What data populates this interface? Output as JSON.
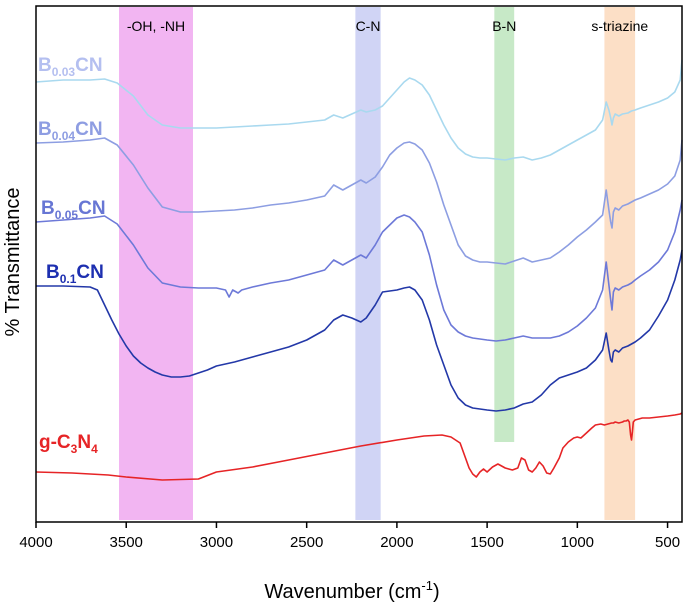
{
  "chart_data": {
    "type": "line",
    "title": "",
    "xlabel": "Wavenumber (cm",
    "xlabel_sup": "-1",
    "xlabel_tail": ")",
    "ylabel": "% Transmittance",
    "xlim": [
      4000,
      420
    ],
    "x_ticks": [
      4000,
      3500,
      3000,
      2500,
      2000,
      1500,
      1000,
      500
    ],
    "y_ticks": [],
    "grid": false,
    "bands": [
      {
        "label": "-OH, -NH",
        "from": 3540,
        "to": 3130,
        "color": "#f0a8f0"
      },
      {
        "label": "C-N",
        "from": 2230,
        "to": 2090,
        "color": "#c8cdf3"
      },
      {
        "label": "B-N",
        "from": 1460,
        "to": 1350,
        "color": "#bde5bd"
      },
      {
        "label": "s-triazine",
        "from": 850,
        "to": 680,
        "color": "#fbd9bc"
      }
    ],
    "series": [
      {
        "name": "B0.03CN",
        "label_main": "B",
        "label_sub": "0.03",
        "label_tail": "CN",
        "color": "#a9d9ef",
        "label_color": "#b4bff0",
        "x": [
          4000,
          3850,
          3700,
          3620,
          3550,
          3460,
          3380,
          3300,
          3200,
          3100,
          3000,
          2900,
          2800,
          2700,
          2600,
          2500,
          2400,
          2350,
          2300,
          2250,
          2200,
          2170,
          2120,
          2080,
          2040,
          2000,
          1960,
          1930,
          1900,
          1860,
          1820,
          1780,
          1740,
          1700,
          1660,
          1620,
          1580,
          1540,
          1500,
          1450,
          1400,
          1350,
          1300,
          1250,
          1200,
          1150,
          1100,
          1050,
          1000,
          950,
          900,
          860,
          840,
          825,
          815,
          808,
          800,
          790,
          770,
          750,
          720,
          700,
          680,
          650,
          600,
          550,
          500,
          460,
          430,
          420
        ],
        "y": [
          82,
          80,
          80,
          79,
          83,
          96,
          115,
          125,
          128,
          128,
          128,
          127,
          126,
          125,
          124,
          122,
          120,
          115,
          118,
          114,
          110,
          112,
          110,
          106,
          98,
          90,
          82,
          78,
          80,
          85,
          95,
          110,
          125,
          138,
          148,
          154,
          157,
          158,
          158,
          159,
          160,
          158,
          157,
          160,
          158,
          155,
          150,
          145,
          140,
          135,
          130,
          120,
          102,
          110,
          118,
          125,
          118,
          114,
          116,
          114,
          113,
          111,
          110,
          108,
          105,
          102,
          98,
          92,
          80,
          60
        ]
      },
      {
        "name": "B0.04CN",
        "label_main": "B",
        "label_sub": "0.04",
        "label_tail": "CN",
        "color": "#8d9ee2",
        "label_color": "#8e9de2",
        "x": [
          4000,
          3850,
          3700,
          3620,
          3550,
          3460,
          3380,
          3300,
          3200,
          3100,
          3000,
          2900,
          2800,
          2700,
          2600,
          2500,
          2400,
          2350,
          2300,
          2250,
          2200,
          2170,
          2120,
          2080,
          2040,
          2000,
          1960,
          1930,
          1900,
          1860,
          1820,
          1780,
          1740,
          1700,
          1660,
          1620,
          1580,
          1540,
          1500,
          1450,
          1400,
          1350,
          1300,
          1250,
          1200,
          1150,
          1100,
          1050,
          1000,
          950,
          900,
          860,
          840,
          825,
          815,
          808,
          800,
          790,
          770,
          750,
          720,
          700,
          680,
          650,
          600,
          550,
          500,
          460,
          430,
          420
        ],
        "y": [
          143,
          142,
          140,
          138,
          145,
          165,
          188,
          207,
          212,
          212,
          211,
          210,
          208,
          205,
          203,
          200,
          196,
          185,
          190,
          185,
          180,
          183,
          177,
          167,
          155,
          148,
          143,
          142,
          144,
          150,
          163,
          182,
          205,
          225,
          245,
          256,
          260,
          262,
          262,
          263,
          264,
          261,
          258,
          262,
          260,
          258,
          252,
          245,
          237,
          230,
          222,
          215,
          190,
          210,
          222,
          228,
          212,
          208,
          210,
          206,
          204,
          202,
          200,
          198,
          194,
          190,
          184,
          176,
          160,
          140
        ]
      },
      {
        "name": "B0.05CN",
        "label_main": "B",
        "label_sub": "0.05",
        "label_tail": "CN",
        "color": "#6d79d8",
        "label_color": "#6776d4",
        "x": [
          4000,
          3850,
          3700,
          3620,
          3550,
          3460,
          3380,
          3300,
          3200,
          3100,
          3000,
          2950,
          2930,
          2910,
          2880,
          2860,
          2800,
          2700,
          2600,
          2500,
          2400,
          2350,
          2300,
          2250,
          2200,
          2170,
          2120,
          2080,
          2040,
          2000,
          1960,
          1930,
          1900,
          1860,
          1820,
          1780,
          1740,
          1700,
          1660,
          1620,
          1580,
          1540,
          1500,
          1450,
          1400,
          1350,
          1300,
          1250,
          1200,
          1150,
          1100,
          1050,
          1000,
          950,
          900,
          860,
          840,
          825,
          815,
          808,
          800,
          790,
          770,
          750,
          720,
          700,
          680,
          650,
          600,
          550,
          500,
          460,
          430,
          420
        ],
        "y": [
          222,
          220,
          218,
          216,
          224,
          245,
          268,
          283,
          287,
          288,
          288,
          290,
          297,
          290,
          293,
          290,
          287,
          283,
          280,
          275,
          270,
          260,
          265,
          260,
          255,
          258,
          245,
          232,
          225,
          218,
          215,
          217,
          222,
          232,
          255,
          285,
          310,
          325,
          332,
          336,
          338,
          339,
          340,
          341,
          340,
          338,
          336,
          338,
          338,
          338,
          336,
          332,
          326,
          318,
          308,
          290,
          262,
          285,
          300,
          310,
          292,
          288,
          290,
          287,
          285,
          283,
          280,
          276,
          270,
          262,
          250,
          232,
          210,
          200
        ]
      },
      {
        "name": "B0.1CN",
        "label_main": "B",
        "label_sub": "0.1",
        "label_tail": "CN",
        "color": "#2338a8",
        "label_color": "#1d2fb0",
        "x": [
          4000,
          3850,
          3700,
          3660,
          3620,
          3580,
          3540,
          3500,
          3460,
          3420,
          3380,
          3340,
          3300,
          3250,
          3200,
          3150,
          3100,
          3050,
          3000,
          2900,
          2800,
          2700,
          2600,
          2500,
          2400,
          2350,
          2300,
          2250,
          2200,
          2170,
          2120,
          2080,
          2040,
          2000,
          1960,
          1930,
          1900,
          1860,
          1820,
          1780,
          1740,
          1700,
          1660,
          1620,
          1580,
          1540,
          1500,
          1450,
          1400,
          1350,
          1300,
          1250,
          1200,
          1150,
          1100,
          1050,
          1000,
          950,
          900,
          860,
          840,
          825,
          815,
          808,
          800,
          790,
          770,
          750,
          720,
          700,
          680,
          650,
          600,
          550,
          500,
          460,
          430,
          420
        ],
        "y": [
          286,
          286,
          287,
          290,
          305,
          320,
          334,
          346,
          356,
          363,
          368,
          372,
          375,
          377,
          377,
          376,
          373,
          370,
          366,
          362,
          357,
          352,
          347,
          340,
          330,
          320,
          315,
          318,
          322,
          318,
          305,
          292,
          291,
          290,
          288,
          287,
          290,
          300,
          320,
          345,
          365,
          385,
          398,
          405,
          408,
          409,
          410,
          411,
          410,
          408,
          404,
          402,
          395,
          385,
          378,
          375,
          372,
          368,
          360,
          350,
          333,
          350,
          360,
          362,
          352,
          350,
          352,
          348,
          346,
          344,
          342,
          338,
          330,
          316,
          300,
          280,
          260,
          250
        ]
      },
      {
        "name": "g-C3N4",
        "label_main": "g-C",
        "label_sub": "3",
        "label_mid": "N",
        "label_sub2": "4",
        "label_tail": "",
        "color": "#e62426",
        "label_color": "#e62426",
        "x": [
          4000,
          3800,
          3600,
          3500,
          3300,
          3100,
          3000,
          2800,
          2600,
          2400,
          2200,
          2000,
          1850,
          1750,
          1700,
          1650,
          1620,
          1600,
          1580,
          1560,
          1540,
          1520,
          1500,
          1470,
          1440,
          1420,
          1400,
          1360,
          1330,
          1310,
          1290,
          1270,
          1250,
          1230,
          1210,
          1190,
          1170,
          1150,
          1130,
          1100,
          1080,
          1050,
          1020,
          1000,
          980,
          950,
          920,
          900,
          870,
          850,
          830,
          810,
          800,
          790,
          770,
          750,
          740,
          730,
          720,
          712,
          705,
          700,
          695,
          690,
          680,
          660,
          640,
          600,
          550,
          500,
          460,
          430,
          420
        ],
        "y": [
          472,
          473,
          475,
          477,
          480,
          479,
          472,
          467,
          460,
          453,
          446,
          440,
          436,
          435,
          437,
          443,
          458,
          468,
          474,
          477,
          472,
          469,
          472,
          467,
          464,
          466,
          468,
          470,
          468,
          458,
          460,
          470,
          472,
          468,
          462,
          466,
          473,
          474,
          468,
          458,
          448,
          442,
          438,
          437,
          438,
          433,
          428,
          425,
          424,
          425,
          424,
          423,
          423,
          422,
          423,
          422,
          421,
          421,
          420,
          422,
          435,
          440,
          432,
          422,
          420,
          419,
          418,
          418,
          417,
          416,
          415,
          414,
          413
        ]
      }
    ]
  }
}
